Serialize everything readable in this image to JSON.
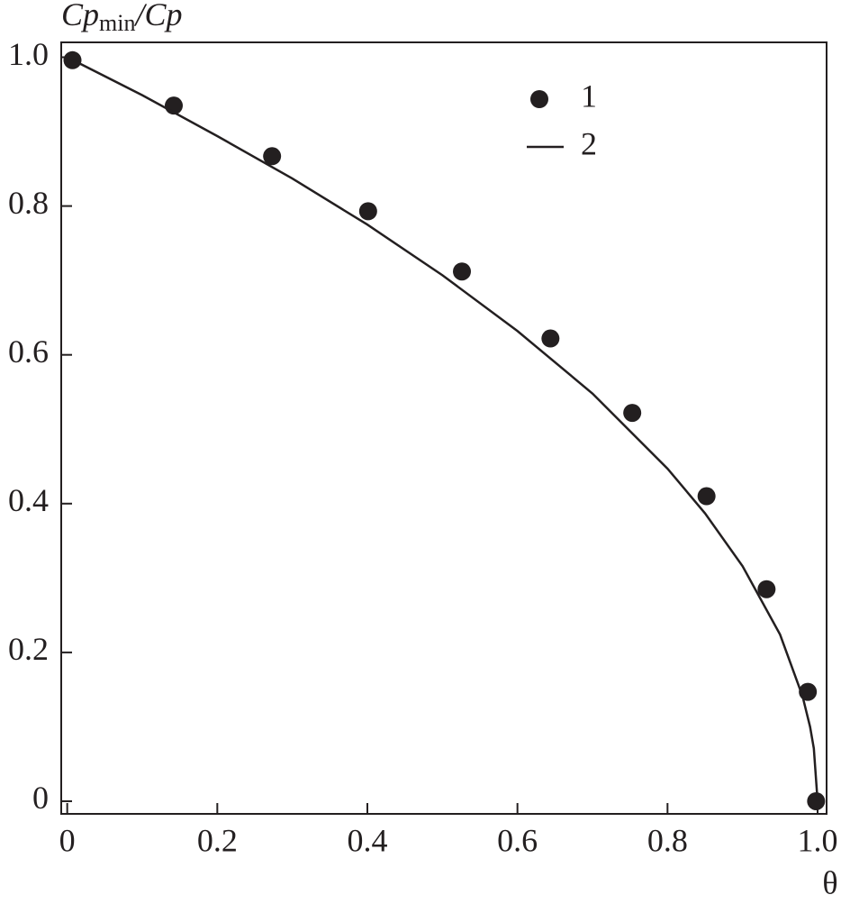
{
  "chart_data": {
    "type": "scatter-line",
    "y_label": [
      "Cp",
      "min",
      "/Cp"
    ],
    "x_label": "θ",
    "xlim": [
      -0.008,
      1.012
    ],
    "ylim": [
      -0.017,
      1.02
    ],
    "xticks": [
      0,
      0.2,
      0.4,
      0.6,
      0.8,
      {
        "value": 1,
        "label": "1.0"
      }
    ],
    "yticks": [
      0,
      0.2,
      0.4,
      0.6,
      0.8,
      {
        "value": 1,
        "label": "1.0"
      }
    ],
    "series": [
      {
        "name": "1",
        "type": "scatter",
        "color": "#231f20",
        "x": [
          0.007,
          0.142,
          0.273,
          0.401,
          0.526,
          0.644,
          0.753,
          0.852,
          0.932,
          0.987,
          0.998
        ],
        "values": [
          0.996,
          0.935,
          0.867,
          0.793,
          0.712,
          0.622,
          0.522,
          0.41,
          0.285,
          0.147,
          0
        ]
      },
      {
        "name": "2",
        "type": "line",
        "color": "#231f20",
        "x": [
          0,
          0.1,
          0.2,
          0.3,
          0.4,
          0.5,
          0.6,
          0.7,
          0.8,
          0.85,
          0.9,
          0.95,
          0.98,
          0.99,
          0.995,
          1
        ],
        "values": [
          1,
          0.949,
          0.894,
          0.837,
          0.775,
          0.707,
          0.632,
          0.548,
          0.447,
          0.387,
          0.316,
          0.224,
          0.141,
          0.1,
          0.071,
          0
        ]
      }
    ]
  }
}
